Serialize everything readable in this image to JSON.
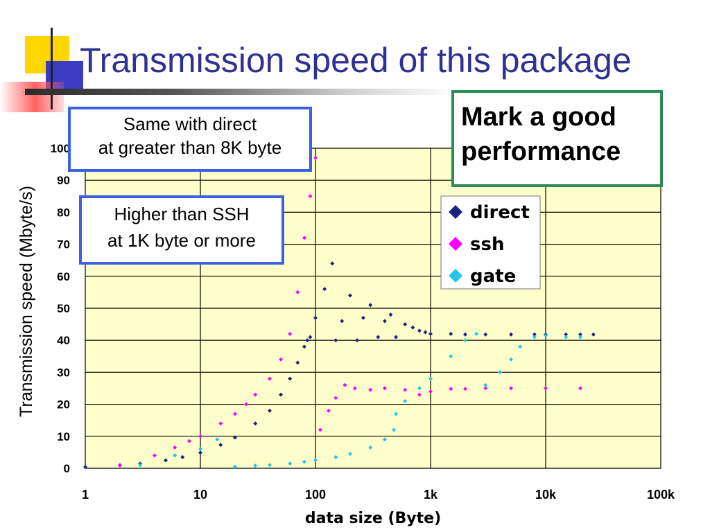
{
  "slide": {
    "title": "Transmission speed of this package"
  },
  "callouts": {
    "direct": {
      "line1": "Same with direct",
      "line2": "at greater than 8K byte"
    },
    "ssh": {
      "line1": "Higher than SSH",
      "line2": "at 1K byte or more"
    },
    "good": {
      "line1": "Mark a good",
      "line2": "performance"
    }
  },
  "colors": {
    "title": "#2e3192",
    "plot_bg": "#ffffcc",
    "direct": "#1a237e",
    "ssh": "#ff00ff",
    "gate": "#21c6e8",
    "callout_blue": "#3a62e0",
    "callout_green": "#2e8b57"
  },
  "chart_data": {
    "type": "scatter",
    "title": "",
    "xlabel": "data size (Byte)",
    "ylabel": "Transmission speed (Mbyte/s)",
    "x_scale": "log",
    "xlim": [
      1,
      100000
    ],
    "ylim": [
      0,
      100
    ],
    "grid": {
      "x": true,
      "y": true
    },
    "x_ticks": [
      1,
      10,
      100,
      1000,
      10000,
      100000
    ],
    "x_tick_labels": [
      "1",
      "10",
      "100",
      "1k",
      "10k",
      "100k"
    ],
    "y_ticks": [
      0,
      10,
      20,
      30,
      40,
      50,
      60,
      70,
      80,
      90,
      100
    ],
    "y_tick_labels": [
      "0",
      "10",
      "20",
      "30",
      "40",
      "50",
      "60",
      "70",
      "80",
      "90",
      "100"
    ],
    "legend_position": "top-right",
    "series": [
      {
        "name": "direct",
        "color": "#1a237e",
        "marker": "diamond",
        "points": [
          [
            1,
            0.4
          ],
          [
            2,
            0.9
          ],
          [
            3,
            1.4
          ],
          [
            5,
            2.5
          ],
          [
            7,
            3.5
          ],
          [
            10,
            4.9
          ],
          [
            15,
            7.3
          ],
          [
            20,
            9.6
          ],
          [
            30,
            14
          ],
          [
            40,
            18
          ],
          [
            50,
            23
          ],
          [
            60,
            28
          ],
          [
            70,
            33
          ],
          [
            80,
            38
          ],
          [
            85,
            40
          ],
          [
            90,
            41
          ],
          [
            100,
            47
          ],
          [
            120,
            56
          ],
          [
            140,
            64
          ],
          [
            150,
            40
          ],
          [
            170,
            46
          ],
          [
            200,
            54
          ],
          [
            230,
            40
          ],
          [
            260,
            47
          ],
          [
            300,
            51
          ],
          [
            350,
            41
          ],
          [
            400,
            46
          ],
          [
            450,
            48
          ],
          [
            500,
            41
          ],
          [
            600,
            45
          ],
          [
            700,
            44
          ],
          [
            800,
            43
          ],
          [
            900,
            42.5
          ],
          [
            1000,
            42
          ],
          [
            1500,
            42
          ],
          [
            2000,
            41.8
          ],
          [
            3000,
            41.8
          ],
          [
            5000,
            41.8
          ],
          [
            8000,
            41.8
          ],
          [
            10000,
            41.8
          ],
          [
            15000,
            41.8
          ],
          [
            20000,
            41.8
          ],
          [
            26000,
            41.8
          ]
        ]
      },
      {
        "name": "ssh",
        "color": "#ff00ff",
        "marker": "diamond",
        "points": [
          [
            2,
            1
          ],
          [
            4,
            4
          ],
          [
            6,
            6.5
          ],
          [
            8,
            8.5
          ],
          [
            10,
            10
          ],
          [
            15,
            14
          ],
          [
            20,
            17
          ],
          [
            25,
            20
          ],
          [
            30,
            23
          ],
          [
            40,
            28
          ],
          [
            50,
            34
          ],
          [
            60,
            42
          ],
          [
            70,
            55
          ],
          [
            80,
            72
          ],
          [
            90,
            85
          ],
          [
            100,
            97
          ],
          [
            110,
            12
          ],
          [
            130,
            18
          ],
          [
            150,
            22
          ],
          [
            180,
            26
          ],
          [
            220,
            25
          ],
          [
            300,
            24.5
          ],
          [
            400,
            25
          ],
          [
            600,
            24.5
          ],
          [
            800,
            23
          ],
          [
            1000,
            24
          ],
          [
            1500,
            24.8
          ],
          [
            2000,
            24.8
          ],
          [
            3000,
            25
          ],
          [
            5000,
            25
          ],
          [
            10000,
            25
          ],
          [
            20000,
            25
          ]
        ]
      },
      {
        "name": "gate",
        "color": "#21c6e8",
        "marker": "diamond",
        "points": [
          [
            3,
            1
          ],
          [
            6,
            4
          ],
          [
            10,
            6
          ],
          [
            14,
            9
          ],
          [
            20,
            0.5
          ],
          [
            30,
            0.8
          ],
          [
            40,
            1
          ],
          [
            60,
            1.5
          ],
          [
            80,
            2
          ],
          [
            100,
            2.5
          ],
          [
            150,
            3.5
          ],
          [
            200,
            4.5
          ],
          [
            300,
            6.5
          ],
          [
            400,
            9
          ],
          [
            480,
            12
          ],
          [
            500,
            17
          ],
          [
            600,
            21
          ],
          [
            800,
            25
          ],
          [
            1000,
            28
          ],
          [
            1500,
            35
          ],
          [
            2000,
            40
          ],
          [
            2500,
            42
          ],
          [
            3000,
            26
          ],
          [
            4000,
            30
          ],
          [
            5000,
            34
          ],
          [
            6000,
            38
          ],
          [
            8000,
            41
          ],
          [
            10000,
            41.5
          ],
          [
            15000,
            41
          ],
          [
            20000,
            41
          ]
        ]
      }
    ]
  }
}
